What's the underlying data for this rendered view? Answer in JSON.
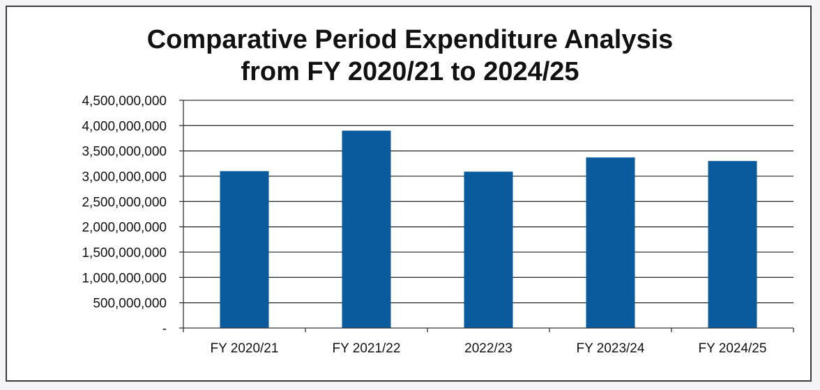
{
  "chart_data": {
    "type": "bar",
    "title": "Comparative Period Expenditure Analysis",
    "subtitle": "from FY 2020/21 to 2024/25",
    "categories": [
      "FY 2020/21",
      "FY 2021/22",
      "2022/23",
      "FY 2023/24",
      "FY 2024/25"
    ],
    "values": [
      3100000000,
      3900000000,
      3090000000,
      3370000000,
      3300000000
    ],
    "ylim": [
      0,
      4500000000
    ],
    "yticks": [
      0,
      500000000,
      1000000000,
      1500000000,
      2000000000,
      2500000000,
      3000000000,
      3500000000,
      4000000000,
      4500000000
    ],
    "ytick_labels": [
      "-",
      "500,000,000",
      "1,000,000,000",
      "1,500,000,000",
      "2,000,000,000",
      "2,500,000,000",
      "3,000,000,000",
      "3,500,000,000",
      "4,000,000,000",
      "4,500,000,000"
    ],
    "xlabel": "",
    "ylabel": "",
    "grid": true,
    "bar_color": "#0a5a9e",
    "grid_color": "#333333"
  }
}
